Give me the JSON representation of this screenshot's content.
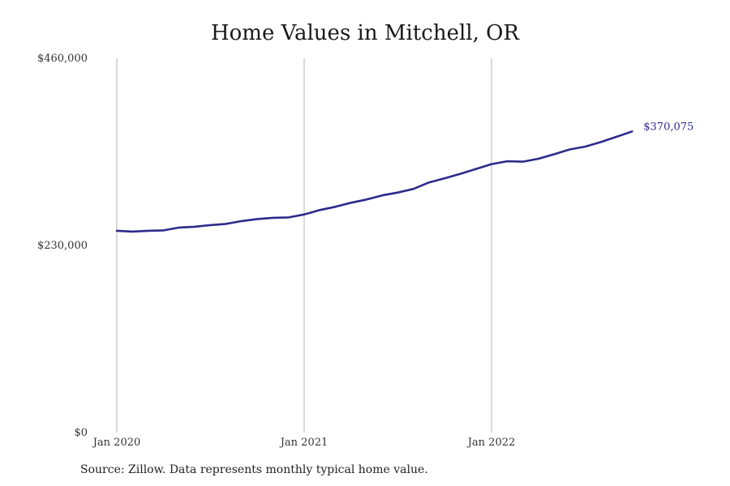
{
  "chart_data": {
    "type": "line",
    "title": "Home Values in Mitchell, OR",
    "xlabel": "",
    "ylabel": "",
    "ylim": [
      0,
      460000
    ],
    "y_ticks": [
      {
        "value": 0,
        "label": "$0"
      },
      {
        "value": 230000,
        "label": "$230,000"
      },
      {
        "value": 460000,
        "label": "$460,000"
      }
    ],
    "x_ticks": [
      "Jan 2020",
      "Jan 2021",
      "Jan 2022"
    ],
    "grid": "vertical lines at January of each year",
    "series": [
      {
        "color": "#2e2a8c",
        "x": [
          "2020-01",
          "2020-02",
          "2020-03",
          "2020-04",
          "2020-05",
          "2020-06",
          "2020-07",
          "2020-08",
          "2020-09",
          "2020-10",
          "2020-11",
          "2020-12",
          "2021-01",
          "2021-02",
          "2021-03",
          "2021-04",
          "2021-05",
          "2021-06",
          "2021-07",
          "2021-08",
          "2021-09",
          "2021-10",
          "2021-11",
          "2021-12",
          "2022-01",
          "2022-02",
          "2022-03",
          "2022-04",
          "2022-05",
          "2022-06",
          "2022-07",
          "2022-08",
          "2022-09",
          "2022-10"
        ],
        "values": [
          248000,
          247000,
          248000,
          248500,
          252000,
          253000,
          255000,
          256500,
          260000,
          262500,
          264000,
          264500,
          268000,
          273500,
          277500,
          282500,
          286500,
          291500,
          295000,
          299500,
          307500,
          312500,
          318000,
          324000,
          330000,
          333500,
          333000,
          336500,
          342000,
          348000,
          351500,
          357000,
          363500,
          370075
        ]
      }
    ],
    "end_label": "$370,075",
    "source": "Source: Zillow. Data represents monthly typical home value."
  }
}
